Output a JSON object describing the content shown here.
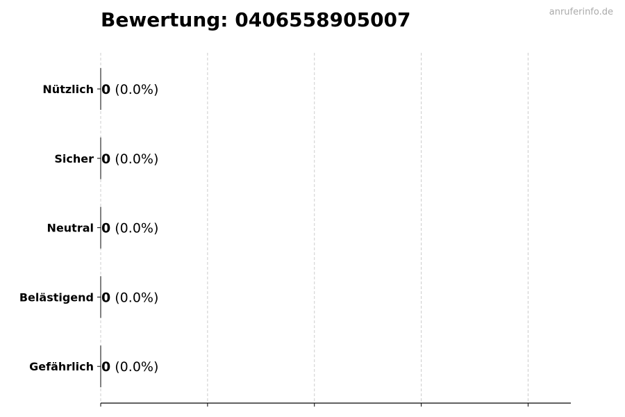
{
  "chart_data": {
    "type": "bar",
    "orientation": "horizontal",
    "title": "Bewertung: 0406558905007",
    "categories": [
      "Nützlich",
      "Sicher",
      "Neutral",
      "Belästigend",
      "Gefährlich"
    ],
    "values": [
      0,
      0,
      0,
      0,
      0
    ],
    "percent_labels": [
      "(0.0%)",
      "(0.0%)",
      "(0.0%)",
      "(0.0%)",
      "(0.0%)"
    ],
    "xlim": [
      0,
      4.4
    ],
    "xticks": [
      0,
      1,
      2,
      3,
      4
    ],
    "xtick_labels_shown": false,
    "grid": "x dashed",
    "colors": {
      "bar_edge": "#000000",
      "grid": "#cccccc"
    }
  },
  "watermark": "anruferinfo.de"
}
